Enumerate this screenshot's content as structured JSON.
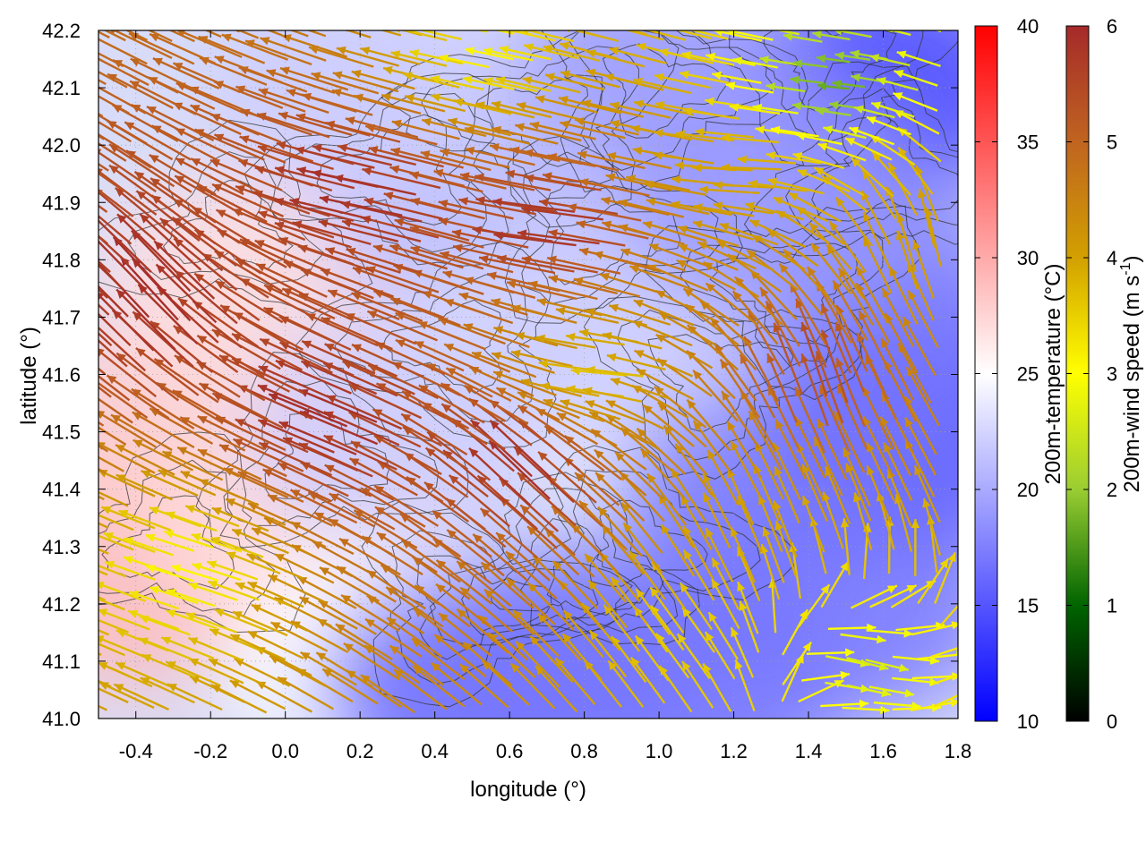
{
  "chart_data": {
    "type": "heatmap",
    "xlabel": "longitude (°)",
    "ylabel": "latitude (°)",
    "xlim": [
      -0.5,
      1.8
    ],
    "ylim": [
      41.0,
      42.2
    ],
    "x_ticks": [
      -0.4,
      -0.2,
      0.0,
      0.2,
      0.4,
      0.6,
      0.8,
      1.0,
      1.2,
      1.4,
      1.6,
      1.8
    ],
    "y_ticks": [
      41.0,
      41.1,
      41.2,
      41.3,
      41.4,
      41.5,
      41.6,
      41.7,
      41.8,
      41.9,
      42.0,
      42.1,
      42.2
    ],
    "x_tick_labels": [
      "-0.4",
      "-0.2",
      "0.0",
      "0.2",
      "0.4",
      "0.6",
      "0.8",
      "1.0",
      "1.2",
      "1.4",
      "1.6",
      "1.8"
    ],
    "y_tick_labels": [
      "41.0",
      "41.1",
      "41.2",
      "41.3",
      "41.4",
      "41.5",
      "41.6",
      "41.7",
      "41.8",
      "41.9",
      "42.0",
      "42.1",
      "42.2"
    ],
    "grid": true,
    "temperature_colorbar": {
      "label": "200m-temperature (°C)",
      "range": [
        10,
        40
      ],
      "ticks": [
        10,
        15,
        20,
        25,
        30,
        35,
        40
      ],
      "tick_labels": [
        "10",
        "15",
        "20",
        "25",
        "30",
        "35",
        "40"
      ],
      "colors": [
        "#0000ff",
        "#ffffff",
        "#ff0000"
      ]
    },
    "wind_colorbar": {
      "label": "200m-wind speed (m s",
      "label_sup": "-1",
      "label_end": ")",
      "range": [
        0,
        6
      ],
      "ticks": [
        0,
        1,
        2,
        3,
        4,
        5,
        6
      ],
      "tick_labels": [
        "0",
        "1",
        "2",
        "3",
        "4",
        "5",
        "6"
      ],
      "colors": [
        "#000000",
        "#006400",
        "#9acd32",
        "#ffff00",
        "#d2a000",
        "#c06420",
        "#a52a2a"
      ]
    },
    "temperature_regions": [
      {
        "lon": -0.45,
        "lat": 41.25,
        "temp": 29
      },
      {
        "lon": -0.3,
        "lat": 41.5,
        "temp": 28
      },
      {
        "lon": -0.1,
        "lat": 41.75,
        "temp": 27
      },
      {
        "lon": 0.05,
        "lat": 41.35,
        "temp": 27
      },
      {
        "lon": 0.25,
        "lat": 41.1,
        "temp": 25
      },
      {
        "lon": 0.5,
        "lat": 41.05,
        "temp": 16
      },
      {
        "lon": 0.8,
        "lat": 41.1,
        "temp": 17
      },
      {
        "lon": 1.1,
        "lat": 41.05,
        "temp": 17
      },
      {
        "lon": 1.5,
        "lat": 41.2,
        "temp": 17
      },
      {
        "lon": 1.7,
        "lat": 41.5,
        "temp": 15
      },
      {
        "lon": 1.6,
        "lat": 42.1,
        "temp": 14
      },
      {
        "lon": 1.0,
        "lat": 42.1,
        "temp": 19
      },
      {
        "lon": 0.5,
        "lat": 41.9,
        "temp": 21
      },
      {
        "lon": 0.7,
        "lat": 41.6,
        "temp": 24
      },
      {
        "lon": 1.3,
        "lat": 41.4,
        "temp": 17
      },
      {
        "lon": 1.6,
        "lat": 41.7,
        "temp": 17
      },
      {
        "lon": 0.9,
        "lat": 41.7,
        "temp": 22
      },
      {
        "lon": 0.3,
        "lat": 41.5,
        "temp": 22
      },
      {
        "lon": 0.2,
        "lat": 42.1,
        "temp": 22
      },
      {
        "lon": 1.3,
        "lat": 41.9,
        "temp": 19
      }
    ],
    "wind_regions": [
      {
        "lon": -0.3,
        "lat": 41.7,
        "u": -0.8,
        "v": 0.9,
        "speed": 6.0
      },
      {
        "lon": 0.2,
        "lat": 41.5,
        "u": -1.0,
        "v": 0.4,
        "speed": 6.0
      },
      {
        "lon": 0.3,
        "lat": 41.9,
        "u": -1.0,
        "v": 0.2,
        "speed": 6.0
      },
      {
        "lon": 0.8,
        "lat": 41.85,
        "u": -1.0,
        "v": 0.1,
        "speed": 6.0
      },
      {
        "lon": 0.7,
        "lat": 41.4,
        "u": -0.7,
        "v": 0.7,
        "speed": 6.0
      },
      {
        "lon": 0.9,
        "lat": 41.6,
        "u": -1.0,
        "v": 0.05,
        "speed": 3.5
      },
      {
        "lon": 1.3,
        "lat": 41.95,
        "u": -1.0,
        "v": 0.0,
        "speed": 4.0
      },
      {
        "lon": 1.5,
        "lat": 42.1,
        "u": -1.0,
        "v": 0.1,
        "speed": 1.5
      },
      {
        "lon": 0.6,
        "lat": 42.15,
        "u": -1.0,
        "v": 0.2,
        "speed": 3.0
      },
      {
        "lon": 1.45,
        "lat": 41.55,
        "u": -0.3,
        "v": 1.0,
        "speed": 5.5
      },
      {
        "lon": 1.3,
        "lat": 41.3,
        "u": -0.4,
        "v": 1.0,
        "speed": 4.0
      },
      {
        "lon": 1.5,
        "lat": 41.1,
        "u": 1.0,
        "v": -0.3,
        "speed": 2.5
      },
      {
        "lon": 1.1,
        "lat": 41.1,
        "u": -0.6,
        "v": 0.8,
        "speed": 3.5
      },
      {
        "lon": -0.2,
        "lat": 41.25,
        "u": -1.0,
        "v": 0.3,
        "speed": 3.0
      },
      {
        "lon": 1.75,
        "lat": 41.8,
        "u": -0.2,
        "v": 1.0,
        "speed": 4.0
      }
    ]
  }
}
